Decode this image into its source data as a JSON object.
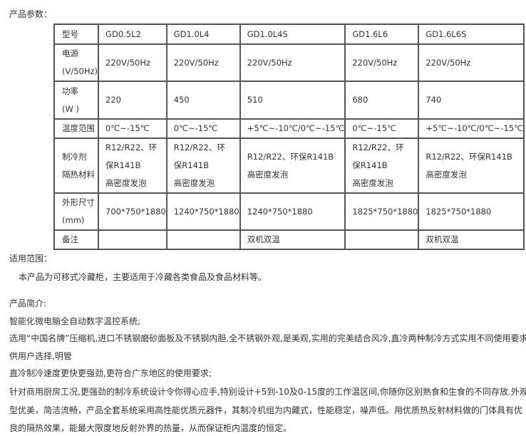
{
  "params_heading": "产品参数：",
  "table": {
    "rows": [
      {
        "label": [
          "型号"
        ],
        "cells": [
          [
            "GD0.5L2"
          ],
          [
            "GD1.0L4"
          ],
          [
            "GD1.0L4S"
          ],
          [
            "GD1.6L6"
          ],
          [
            "GD1.6L6S"
          ]
        ]
      },
      {
        "label": [
          "电源",
          "(V/50Hz)"
        ],
        "cells": [
          [
            "220V/50Hz"
          ],
          [
            "220V/50Hz"
          ],
          [
            "220V/50Hz"
          ],
          [
            "220V/50Hz"
          ],
          [
            "220V/50Hz"
          ]
        ]
      },
      {
        "label": [
          "功率",
          "(W )"
        ],
        "cells": [
          [
            "220"
          ],
          [
            "450"
          ],
          [
            "510"
          ],
          [
            "680"
          ],
          [
            "740"
          ]
        ]
      },
      {
        "label": [
          "温度范围"
        ],
        "cells": [
          [
            "0℃~-15℃"
          ],
          [
            "0℃~-15℃"
          ],
          [
            "+5℃~-10℃/0℃~-15℃"
          ],
          [
            "0℃~-15℃"
          ],
          [
            "+5℃~-10℃/0℃~-15℃"
          ]
        ]
      },
      {
        "label": [
          "制冷剂",
          "隔热材料"
        ],
        "cells": [
          [
            "R12/R22、环",
            "保R141B",
            "高密度发泡"
          ],
          [
            "R12/R22、环",
            "保R141B",
            "高密度发泡"
          ],
          [
            "R12/R22、环保R141B",
            "高密度发泡"
          ],
          [
            "R12/R22、环",
            "保R141B",
            "高密度发泡"
          ],
          [
            "R12/R22、环保R141B",
            "高密度发泡"
          ]
        ]
      },
      {
        "label": [
          "外形尺寸",
          "(mm)"
        ],
        "cells": [
          [
            "700*750*1880"
          ],
          [
            "1240*750*1880"
          ],
          [
            "1240*750*1880"
          ],
          [
            "1825*750*1880"
          ],
          [
            "1825*750*1880"
          ]
        ]
      },
      {
        "label": [
          "备注"
        ],
        "cells": [
          [
            ""
          ],
          [
            ""
          ],
          [
            "双机双温"
          ],
          [
            ""
          ],
          [
            "双机双温"
          ]
        ]
      }
    ]
  },
  "scope_heading": "适用范围：",
  "scope_text": "本产品为可移式冷藏柜，主要适用于冷藏各类食品及食品材料等。",
  "intro_heading": "产品简介:",
  "intro_lines": [
    "智能化微电脑全自动数字温控系统;",
    "选用“中国名牌”压缩机,进口不锈钢磨砂面板及不锈钢内胆,全不锈钢外观,是美观,实用的完美结合风冷,直冷两种制冷方式实用不同使用要求,",
    "供用户选择,明管",
    "直冷制冷速度更快更强劲,更符合广东地区的使用要求;",
    "针对商用厨房工况,更强劲的制冷系统设计令你得心应手,特别设计+5到-10及0-15度的工作温区间,你随你区别熟食和生食的不同存放.外观造",
    "型优美，简洁流畅，产品全套系统采用高性能优质元器件，其制冷机组为内藏式，性能稳定，噪声低。用优质热反射材料做的门体具有优",
    "良的隔热效果，能最大限度地反射外界的热量，从而保证柜内温度的恒定。"
  ]
}
